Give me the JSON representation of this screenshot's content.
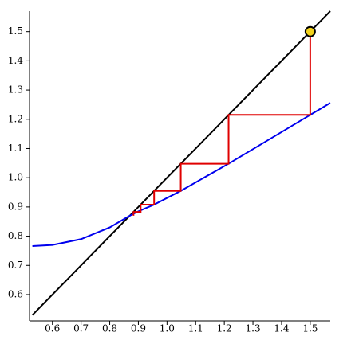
{
  "chart_data": {
    "type": "line",
    "xlim": [
      0.52,
      1.57
    ],
    "ylim": [
      0.51,
      1.57
    ],
    "xticks": [
      0.6,
      0.7,
      0.8,
      0.9,
      {
        "value": 1.0,
        "label": "1.0"
      },
      1.1,
      1.2,
      1.3,
      1.4,
      1.5
    ],
    "yticks": [
      0.6,
      0.7,
      0.8,
      0.9,
      {
        "value": 1.0,
        "label": "1.0"
      },
      1.1,
      1.2,
      1.3,
      1.4,
      1.5
    ],
    "series": [
      {
        "color": "#000000",
        "x": [
          0.53,
          1.57
        ],
        "values": [
          0.53,
          1.57
        ]
      },
      {
        "color": "#0000ee",
        "x": [
          0.53,
          0.6,
          0.7,
          0.8,
          0.87,
          0.9,
          0.955,
          1.048,
          1.215,
          1.5,
          1.57
        ],
        "values": [
          0.766,
          0.77,
          0.79,
          0.83,
          0.87,
          0.885,
          0.908,
          0.955,
          1.048,
          1.215,
          1.256
        ]
      },
      {
        "color": "#e00000",
        "x": [
          1.5,
          1.5,
          1.215,
          1.215,
          1.048,
          1.048,
          0.955,
          0.955,
          0.908,
          0.908,
          0.883,
          0.883
        ],
        "values": [
          1.5,
          1.215,
          1.215,
          1.048,
          1.048,
          0.955,
          0.955,
          0.908,
          0.908,
          0.883,
          0.883,
          0.87
        ]
      }
    ],
    "marker": {
      "x": 1.5,
      "y": 1.5,
      "color": "#f2d21b"
    }
  }
}
